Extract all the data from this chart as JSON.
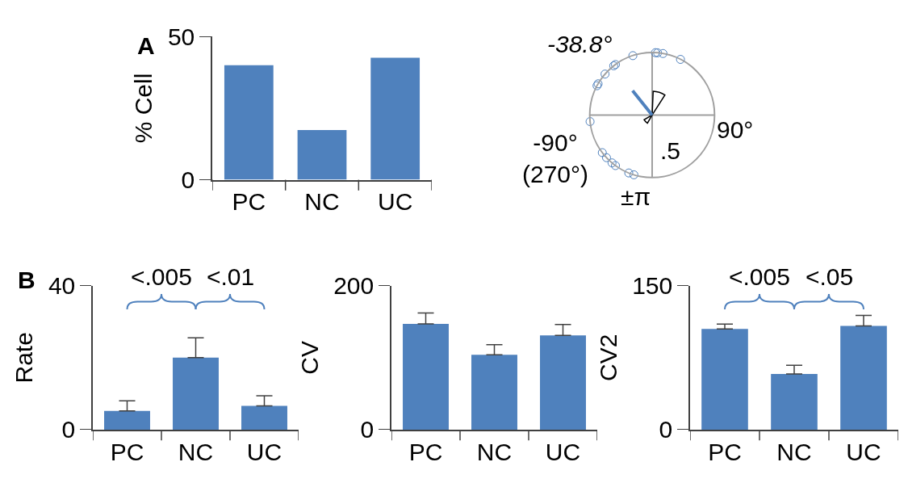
{
  "chart_data": [
    {
      "type": "bar",
      "ylabel": "% Cell",
      "categories": [
        "PC",
        "NC",
        "UC"
      ],
      "values": [
        40.0,
        17.4,
        42.6
      ],
      "color": "#4f81bd",
      "ylim": [
        0,
        50
      ],
      "yticks": [
        0,
        50
      ],
      "annotations": [
        "A"
      ]
    },
    {
      "type": "other",
      "annotations": [
        "-38.8°",
        "-90°\n(270°)",
        "90°",
        "±π",
        ".5"
      ]
    },
    {
      "type": "bar",
      "ylabel": "Rate",
      "categories": [
        "PC",
        "NC",
        "UC"
      ],
      "values": [
        5.2,
        20.0,
        6.6
      ],
      "errors": [
        [
          5.2,
          8.0
        ],
        [
          20.0,
          25.5
        ],
        [
          6.6,
          9.4
        ]
      ],
      "color": "#4f81bd",
      "ylim": [
        0,
        40
      ],
      "yticks": [
        0,
        40
      ],
      "annotations": [
        "B",
        "<.005",
        "<.01"
      ]
    },
    {
      "type": "bar",
      "ylabel": "CV",
      "categories": [
        "PC",
        "NC",
        "UC"
      ],
      "values": [
        147,
        104,
        131
      ],
      "errors": [
        [
          147,
          162
        ],
        [
          104,
          118
        ],
        [
          131,
          146
        ]
      ],
      "color": "#4f81bd",
      "ylim": [
        0,
        200
      ],
      "yticks": [
        0,
        200
      ]
    },
    {
      "type": "bar",
      "ylabel": "CV2",
      "categories": [
        "PC",
        "NC",
        "UC"
      ],
      "values": [
        105,
        58,
        108
      ],
      "errors": [
        [
          105,
          110
        ],
        [
          58,
          67
        ],
        [
          108,
          119
        ]
      ],
      "color": "#4f81bd",
      "ylim": [
        0,
        150
      ],
      "yticks": [
        0,
        150
      ],
      "annotations": [
        "<.005",
        "<.05"
      ]
    }
  ]
}
